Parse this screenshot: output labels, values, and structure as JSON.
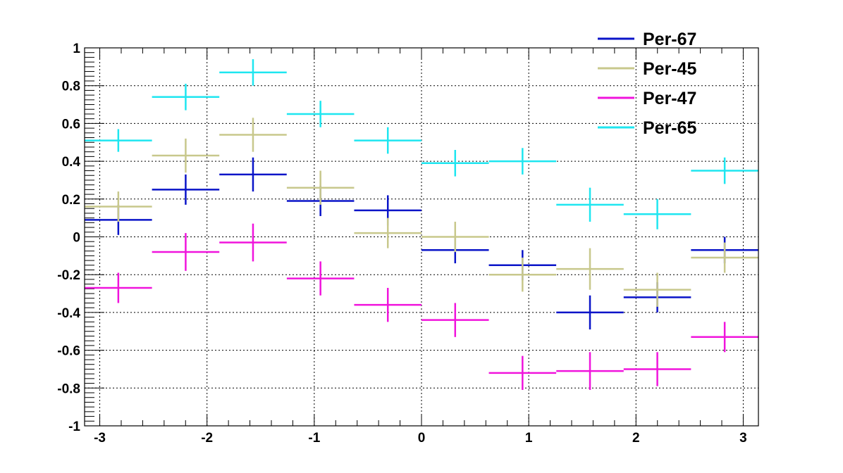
{
  "chart_data": {
    "type": "scatter",
    "title": "",
    "xlabel": "",
    "ylabel": "",
    "xlim": [
      -3.1416,
      3.1416
    ],
    "ylim": [
      -1,
      1
    ],
    "grid": true,
    "legend_position": "top-right",
    "x_ticks": [
      -3,
      -2,
      -1,
      0,
      1,
      2,
      3
    ],
    "x_tick_labels": [
      "-3",
      "-2",
      "-1",
      "0",
      "1",
      "2",
      "3"
    ],
    "y_ticks": [
      -1,
      -0.8,
      -0.6,
      -0.4,
      -0.2,
      0,
      0.2,
      0.4,
      0.6,
      0.8,
      1
    ],
    "y_tick_labels": [
      "-1",
      "-0.8",
      "-0.6",
      "-0.4",
      "-0.2",
      "0",
      "0.2",
      "0.4",
      "0.6",
      "0.8",
      "1"
    ],
    "bin_centers": [
      -2.827,
      -2.199,
      -1.571,
      -0.942,
      -0.314,
      0.314,
      0.942,
      1.571,
      2.199,
      2.827
    ],
    "bin_half_width": 0.314,
    "series": [
      {
        "name": "Per-67",
        "color": "#0a14c8",
        "values": [
          0.09,
          0.25,
          0.33,
          0.19,
          0.14,
          -0.07,
          -0.15,
          -0.4,
          -0.32,
          -0.07
        ],
        "errors": [
          0.08,
          0.08,
          0.09,
          0.08,
          0.08,
          0.07,
          0.08,
          0.09,
          0.08,
          0.07
        ]
      },
      {
        "name": "Per-45",
        "color": "#c8c88c",
        "values": [
          0.16,
          0.43,
          0.54,
          0.26,
          0.02,
          0.0,
          -0.2,
          -0.17,
          -0.28,
          -0.11
        ],
        "errors": [
          0.08,
          0.09,
          0.09,
          0.09,
          0.08,
          0.08,
          0.09,
          0.11,
          0.09,
          0.08
        ]
      },
      {
        "name": "Per-47",
        "color": "#f014dc",
        "values": [
          -0.27,
          -0.08,
          -0.03,
          -0.22,
          -0.36,
          -0.44,
          -0.72,
          -0.71,
          -0.7,
          -0.53
        ],
        "errors": [
          0.08,
          0.1,
          0.1,
          0.09,
          0.09,
          0.09,
          0.09,
          0.1,
          0.09,
          0.08
        ]
      },
      {
        "name": "Per-65",
        "color": "#1ee6f0",
        "values": [
          0.51,
          0.74,
          0.87,
          0.65,
          0.51,
          0.39,
          0.4,
          0.17,
          0.12,
          0.35
        ],
        "errors": [
          0.06,
          0.07,
          0.07,
          0.07,
          0.07,
          0.07,
          0.07,
          0.09,
          0.08,
          0.07
        ]
      }
    ]
  }
}
